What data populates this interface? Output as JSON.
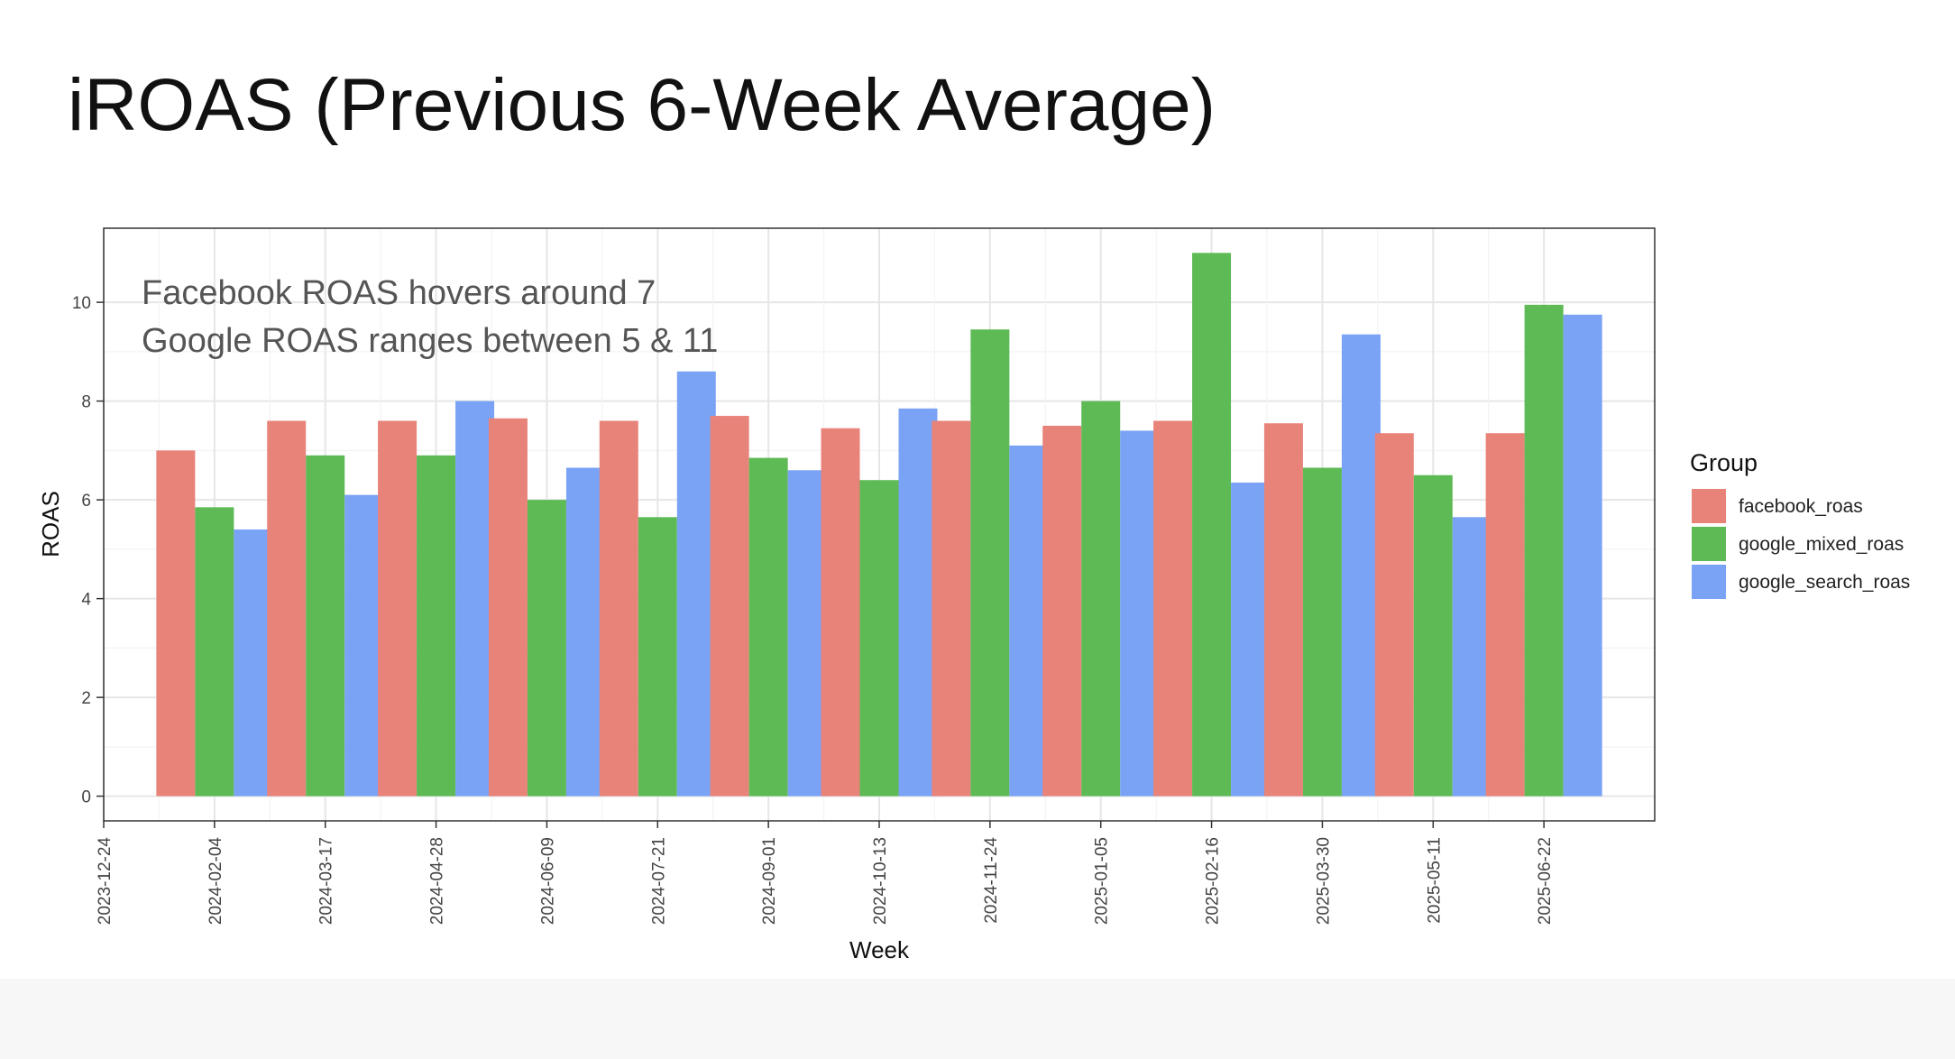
{
  "slide": {
    "title": "iROAS (Previous 6-Week Average)"
  },
  "chart_data": {
    "type": "bar",
    "title": "",
    "xlabel": "Week",
    "ylabel": "ROAS",
    "x_axis_type": "date",
    "xlim": [
      "2023-12-24",
      "2025-08-03"
    ],
    "ylim": [
      -0.5,
      11.5
    ],
    "y_ticks": [
      0,
      2,
      4,
      6,
      8,
      10
    ],
    "x_ticks": [
      "2023-12-24",
      "2024-02-04",
      "2024-03-17",
      "2024-04-28",
      "2024-06-09",
      "2024-07-21",
      "2024-09-01",
      "2024-10-13",
      "2024-11-24",
      "2025-01-05",
      "2025-02-16",
      "2025-03-30",
      "2025-05-11",
      "2025-06-22"
    ],
    "categories": [
      "2024-02-04",
      "2024-03-17",
      "2024-04-28",
      "2024-06-09",
      "2024-07-21",
      "2024-09-01",
      "2024-10-13",
      "2024-11-24",
      "2025-01-05",
      "2025-02-16",
      "2025-03-30",
      "2025-05-11",
      "2025-06-22"
    ],
    "series": [
      {
        "name": "facebook_roas",
        "color": "#E8837A",
        "values": [
          7.0,
          7.6,
          7.6,
          7.65,
          7.6,
          7.7,
          7.45,
          7.6,
          7.5,
          7.6,
          7.55,
          7.35,
          7.35
        ]
      },
      {
        "name": "google_mixed_roas",
        "color": "#5DBA55",
        "values": [
          5.85,
          6.9,
          6.9,
          6.0,
          5.65,
          6.85,
          6.4,
          9.45,
          8.0,
          11.0,
          6.65,
          6.5,
          9.95
        ]
      },
      {
        "name": "google_search_roas",
        "color": "#7AA3F5",
        "values": [
          5.4,
          6.1,
          8.0,
          6.65,
          8.6,
          6.6,
          7.85,
          7.1,
          7.4,
          6.35,
          9.35,
          5.65,
          9.75
        ]
      }
    ],
    "annotations": [
      "Facebook ROAS hovers around 7",
      "Google ROAS ranges between 5 & 11"
    ],
    "legend": {
      "title": "Group",
      "position": "right"
    },
    "grid": true
  }
}
